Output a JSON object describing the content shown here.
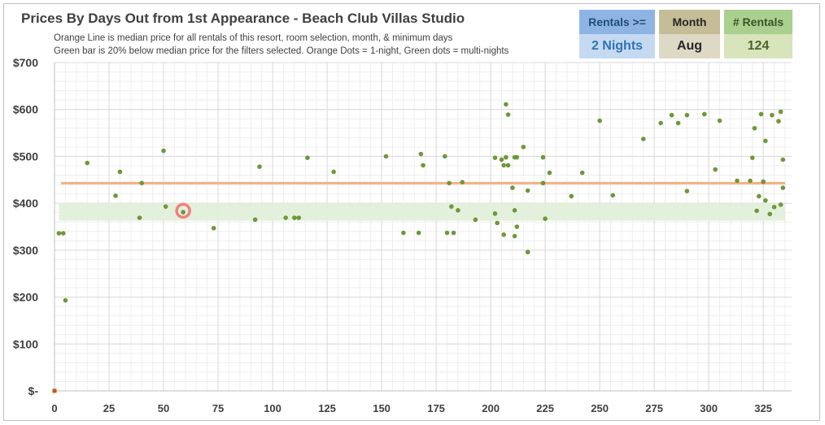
{
  "chart_data": {
    "type": "scatter",
    "title": "Prices By Days Out from 1st Appearance - Beach Club Villas Studio",
    "subtitle_lines": [
      "Orange Line is median price for all rentals of this resort, room selection, month, & minimum days",
      "Green bar is 20% below median price for the filters selected. Orange Dots = 1-night, Green dots = multi-nights"
    ],
    "x_ticks": [
      "0",
      "25",
      "50",
      "75",
      "100",
      "125",
      "150",
      "175",
      "200",
      "225",
      "250",
      "275",
      "300",
      "325"
    ],
    "y_ticks": [
      "$-",
      "$100",
      "$200",
      "$300",
      "$400",
      "$500",
      "$600",
      "$700"
    ],
    "xlim": [
      0,
      338
    ],
    "ylim": [
      0,
      700
    ],
    "median_line": 443,
    "green_band": [
      363,
      400
    ],
    "highlight_point": [
      59,
      384
    ],
    "colors": {
      "median": "#f4b183",
      "band": "#e2efda",
      "dot": "#70963a",
      "one_night": "#c55a11",
      "highlight": "#f28080",
      "grid": "#d9d9d9"
    },
    "series": [
      {
        "points": [
          [
            2,
            336
          ],
          [
            4,
            336
          ],
          [
            5,
            193
          ],
          [
            15,
            486
          ],
          [
            28,
            416
          ],
          [
            30,
            467
          ],
          [
            39,
            369
          ],
          [
            40,
            443
          ],
          [
            50,
            512
          ],
          [
            51,
            393
          ],
          [
            59,
            381
          ],
          [
            73,
            347
          ],
          [
            92,
            365
          ],
          [
            94,
            478
          ],
          [
            106,
            369
          ],
          [
            110,
            369
          ],
          [
            112,
            369
          ],
          [
            116,
            497
          ],
          [
            128,
            467
          ],
          [
            152,
            500
          ],
          [
            160,
            337
          ],
          [
            167,
            337
          ],
          [
            168,
            505
          ],
          [
            169,
            481
          ],
          [
            179,
            500
          ],
          [
            180,
            337
          ],
          [
            181,
            443
          ],
          [
            182,
            393
          ],
          [
            183,
            337
          ],
          [
            185,
            385
          ],
          [
            187,
            445
          ],
          [
            193,
            365
          ],
          [
            202,
            378
          ],
          [
            202,
            497
          ],
          [
            203,
            358
          ],
          [
            205,
            493
          ],
          [
            206,
            481
          ],
          [
            206,
            333
          ],
          [
            207,
            498
          ],
          [
            207,
            611
          ],
          [
            208,
            589
          ],
          [
            208,
            481
          ],
          [
            210,
            433
          ],
          [
            211,
            498
          ],
          [
            211,
            385
          ],
          [
            211,
            330
          ],
          [
            212,
            498
          ],
          [
            212,
            350
          ],
          [
            215,
            520
          ],
          [
            217,
            296
          ],
          [
            217,
            296
          ],
          [
            217,
            427
          ],
          [
            224,
            498
          ],
          [
            224,
            443
          ],
          [
            224,
            443
          ],
          [
            225,
            367
          ],
          [
            227,
            465
          ],
          [
            237,
            415
          ],
          [
            242,
            465
          ],
          [
            250,
            576
          ],
          [
            256,
            417
          ],
          [
            270,
            537
          ],
          [
            278,
            571
          ],
          [
            283,
            588
          ],
          [
            286,
            571
          ],
          [
            290,
            588
          ],
          [
            290,
            426
          ],
          [
            298,
            590
          ],
          [
            303,
            472
          ],
          [
            305,
            576
          ],
          [
            313,
            448
          ],
          [
            319,
            448
          ],
          [
            320,
            497
          ],
          [
            321,
            560
          ],
          [
            322,
            384
          ],
          [
            323,
            415
          ],
          [
            324,
            590
          ],
          [
            325,
            446
          ],
          [
            325,
            446
          ],
          [
            326,
            406
          ],
          [
            326,
            533
          ],
          [
            328,
            377
          ],
          [
            329,
            588
          ],
          [
            330,
            392
          ],
          [
            332,
            575
          ],
          [
            333,
            595
          ],
          [
            333,
            397
          ],
          [
            334,
            433
          ],
          [
            334,
            493
          ]
        ]
      },
      {
        "points": [
          [
            0,
            0
          ]
        ]
      }
    ]
  },
  "cards": {
    "rentals": {
      "label": "Rentals >=",
      "value": "2 Nights"
    },
    "month": {
      "label": "Month",
      "value": "Aug"
    },
    "count": {
      "label": "# Rentals",
      "value": "124"
    }
  }
}
